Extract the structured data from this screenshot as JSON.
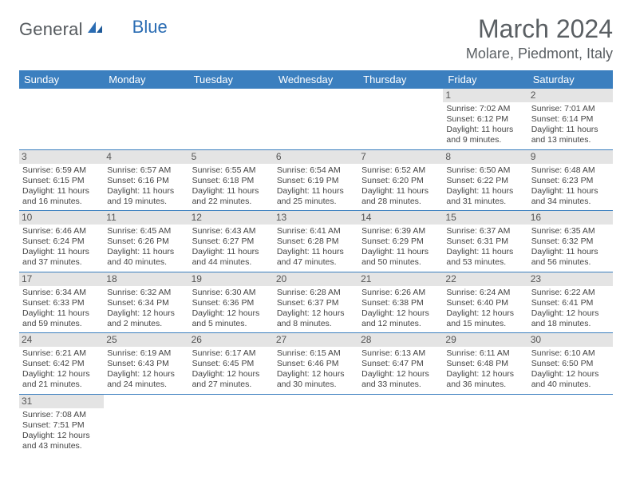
{
  "logo": {
    "part1": "General",
    "part2": "Blue"
  },
  "title": "March 2024",
  "location": "Molare, Piedmont, Italy",
  "colors": {
    "header_bg": "#3b7fbf",
    "header_fg": "#ffffff",
    "daynum_bg": "#e4e4e4",
    "row_border": "#3b7fbf",
    "title_color": "#5a5f63",
    "logo_general": "#555a5e",
    "logo_blue": "#2a6cb3",
    "body_text": "#444444"
  },
  "weekdays": [
    "Sunday",
    "Monday",
    "Tuesday",
    "Wednesday",
    "Thursday",
    "Friday",
    "Saturday"
  ],
  "weeks": [
    [
      {
        "day": "",
        "lines": []
      },
      {
        "day": "",
        "lines": []
      },
      {
        "day": "",
        "lines": []
      },
      {
        "day": "",
        "lines": []
      },
      {
        "day": "",
        "lines": []
      },
      {
        "day": "1",
        "lines": [
          "Sunrise: 7:02 AM",
          "Sunset: 6:12 PM",
          "Daylight: 11 hours",
          "and 9 minutes."
        ]
      },
      {
        "day": "2",
        "lines": [
          "Sunrise: 7:01 AM",
          "Sunset: 6:14 PM",
          "Daylight: 11 hours",
          "and 13 minutes."
        ]
      }
    ],
    [
      {
        "day": "3",
        "lines": [
          "Sunrise: 6:59 AM",
          "Sunset: 6:15 PM",
          "Daylight: 11 hours",
          "and 16 minutes."
        ]
      },
      {
        "day": "4",
        "lines": [
          "Sunrise: 6:57 AM",
          "Sunset: 6:16 PM",
          "Daylight: 11 hours",
          "and 19 minutes."
        ]
      },
      {
        "day": "5",
        "lines": [
          "Sunrise: 6:55 AM",
          "Sunset: 6:18 PM",
          "Daylight: 11 hours",
          "and 22 minutes."
        ]
      },
      {
        "day": "6",
        "lines": [
          "Sunrise: 6:54 AM",
          "Sunset: 6:19 PM",
          "Daylight: 11 hours",
          "and 25 minutes."
        ]
      },
      {
        "day": "7",
        "lines": [
          "Sunrise: 6:52 AM",
          "Sunset: 6:20 PM",
          "Daylight: 11 hours",
          "and 28 minutes."
        ]
      },
      {
        "day": "8",
        "lines": [
          "Sunrise: 6:50 AM",
          "Sunset: 6:22 PM",
          "Daylight: 11 hours",
          "and 31 minutes."
        ]
      },
      {
        "day": "9",
        "lines": [
          "Sunrise: 6:48 AM",
          "Sunset: 6:23 PM",
          "Daylight: 11 hours",
          "and 34 minutes."
        ]
      }
    ],
    [
      {
        "day": "10",
        "lines": [
          "Sunrise: 6:46 AM",
          "Sunset: 6:24 PM",
          "Daylight: 11 hours",
          "and 37 minutes."
        ]
      },
      {
        "day": "11",
        "lines": [
          "Sunrise: 6:45 AM",
          "Sunset: 6:26 PM",
          "Daylight: 11 hours",
          "and 40 minutes."
        ]
      },
      {
        "day": "12",
        "lines": [
          "Sunrise: 6:43 AM",
          "Sunset: 6:27 PM",
          "Daylight: 11 hours",
          "and 44 minutes."
        ]
      },
      {
        "day": "13",
        "lines": [
          "Sunrise: 6:41 AM",
          "Sunset: 6:28 PM",
          "Daylight: 11 hours",
          "and 47 minutes."
        ]
      },
      {
        "day": "14",
        "lines": [
          "Sunrise: 6:39 AM",
          "Sunset: 6:29 PM",
          "Daylight: 11 hours",
          "and 50 minutes."
        ]
      },
      {
        "day": "15",
        "lines": [
          "Sunrise: 6:37 AM",
          "Sunset: 6:31 PM",
          "Daylight: 11 hours",
          "and 53 minutes."
        ]
      },
      {
        "day": "16",
        "lines": [
          "Sunrise: 6:35 AM",
          "Sunset: 6:32 PM",
          "Daylight: 11 hours",
          "and 56 minutes."
        ]
      }
    ],
    [
      {
        "day": "17",
        "lines": [
          "Sunrise: 6:34 AM",
          "Sunset: 6:33 PM",
          "Daylight: 11 hours",
          "and 59 minutes."
        ]
      },
      {
        "day": "18",
        "lines": [
          "Sunrise: 6:32 AM",
          "Sunset: 6:34 PM",
          "Daylight: 12 hours",
          "and 2 minutes."
        ]
      },
      {
        "day": "19",
        "lines": [
          "Sunrise: 6:30 AM",
          "Sunset: 6:36 PM",
          "Daylight: 12 hours",
          "and 5 minutes."
        ]
      },
      {
        "day": "20",
        "lines": [
          "Sunrise: 6:28 AM",
          "Sunset: 6:37 PM",
          "Daylight: 12 hours",
          "and 8 minutes."
        ]
      },
      {
        "day": "21",
        "lines": [
          "Sunrise: 6:26 AM",
          "Sunset: 6:38 PM",
          "Daylight: 12 hours",
          "and 12 minutes."
        ]
      },
      {
        "day": "22",
        "lines": [
          "Sunrise: 6:24 AM",
          "Sunset: 6:40 PM",
          "Daylight: 12 hours",
          "and 15 minutes."
        ]
      },
      {
        "day": "23",
        "lines": [
          "Sunrise: 6:22 AM",
          "Sunset: 6:41 PM",
          "Daylight: 12 hours",
          "and 18 minutes."
        ]
      }
    ],
    [
      {
        "day": "24",
        "lines": [
          "Sunrise: 6:21 AM",
          "Sunset: 6:42 PM",
          "Daylight: 12 hours",
          "and 21 minutes."
        ]
      },
      {
        "day": "25",
        "lines": [
          "Sunrise: 6:19 AM",
          "Sunset: 6:43 PM",
          "Daylight: 12 hours",
          "and 24 minutes."
        ]
      },
      {
        "day": "26",
        "lines": [
          "Sunrise: 6:17 AM",
          "Sunset: 6:45 PM",
          "Daylight: 12 hours",
          "and 27 minutes."
        ]
      },
      {
        "day": "27",
        "lines": [
          "Sunrise: 6:15 AM",
          "Sunset: 6:46 PM",
          "Daylight: 12 hours",
          "and 30 minutes."
        ]
      },
      {
        "day": "28",
        "lines": [
          "Sunrise: 6:13 AM",
          "Sunset: 6:47 PM",
          "Daylight: 12 hours",
          "and 33 minutes."
        ]
      },
      {
        "day": "29",
        "lines": [
          "Sunrise: 6:11 AM",
          "Sunset: 6:48 PM",
          "Daylight: 12 hours",
          "and 36 minutes."
        ]
      },
      {
        "day": "30",
        "lines": [
          "Sunrise: 6:10 AM",
          "Sunset: 6:50 PM",
          "Daylight: 12 hours",
          "and 40 minutes."
        ]
      }
    ],
    [
      {
        "day": "31",
        "lines": [
          "Sunrise: 7:08 AM",
          "Sunset: 7:51 PM",
          "Daylight: 12 hours",
          "and 43 minutes."
        ]
      },
      {
        "day": "",
        "lines": []
      },
      {
        "day": "",
        "lines": []
      },
      {
        "day": "",
        "lines": []
      },
      {
        "day": "",
        "lines": []
      },
      {
        "day": "",
        "lines": []
      },
      {
        "day": "",
        "lines": []
      }
    ]
  ]
}
